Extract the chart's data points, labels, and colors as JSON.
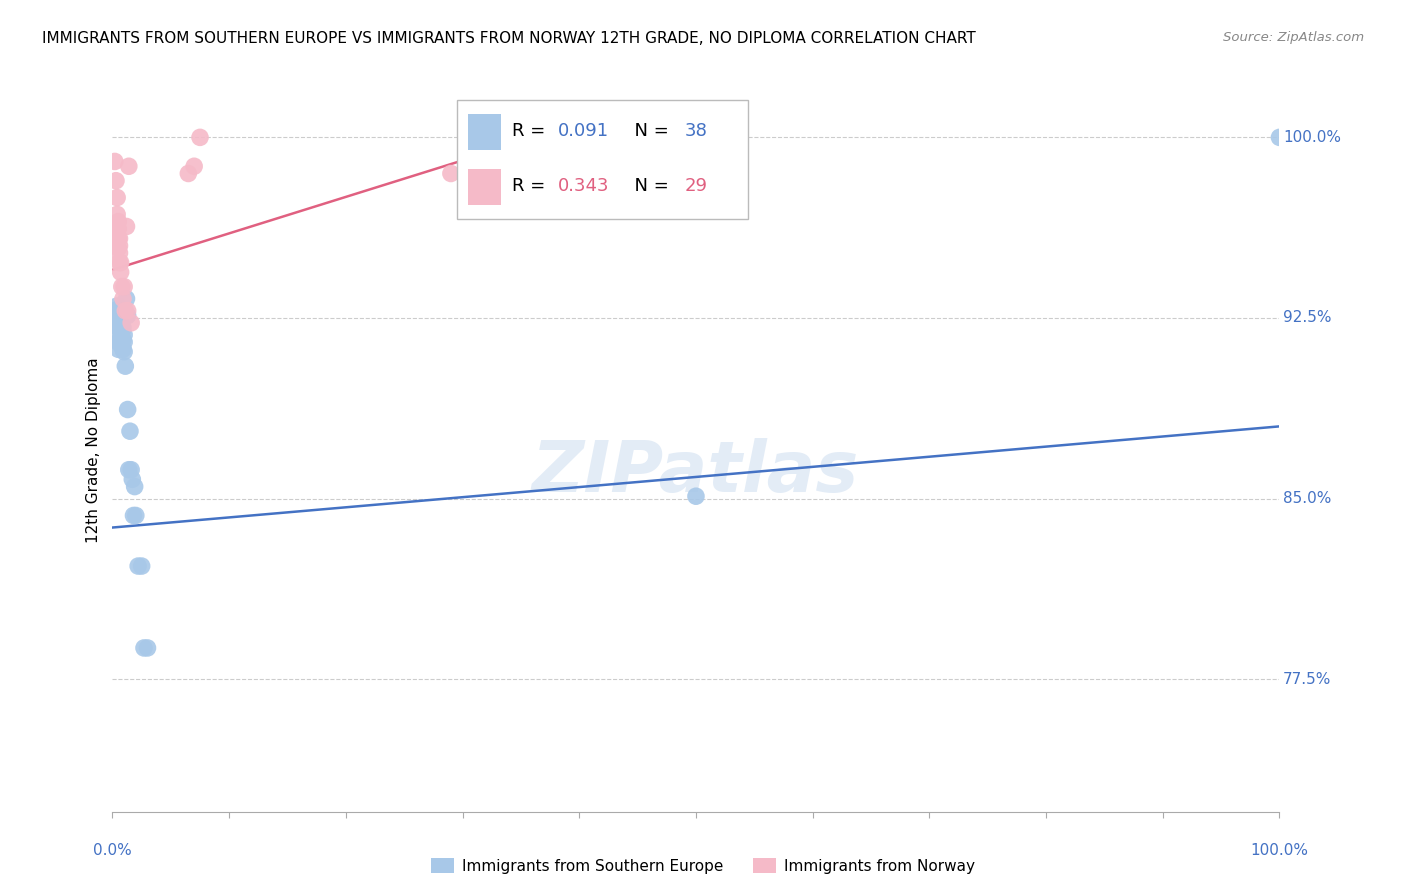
{
  "title": "IMMIGRANTS FROM SOUTHERN EUROPE VS IMMIGRANTS FROM NORWAY 12TH GRADE, NO DIPLOMA CORRELATION CHART",
  "source": "Source: ZipAtlas.com",
  "ylabel": "12th Grade, No Diploma",
  "xlim": [
    0.0,
    1.0
  ],
  "ylim": [
    0.72,
    1.02
  ],
  "ytick_vals": [
    0.775,
    0.85,
    0.925,
    1.0
  ],
  "ytick_labels": [
    "77.5%",
    "85.0%",
    "92.5%",
    "100.0%"
  ],
  "blue_fill": "#a8c8e8",
  "blue_line": "#4472c4",
  "pink_fill": "#f5bac8",
  "pink_line": "#e06080",
  "r_blue": 0.091,
  "n_blue": 38,
  "r_pink": 0.343,
  "n_pink": 29,
  "legend_label_blue": "Immigrants from Southern Europe",
  "legend_label_pink": "Immigrants from Norway",
  "watermark": "ZIPatlas",
  "blue_trend_x": [
    0.0,
    1.0
  ],
  "blue_trend_y": [
    0.838,
    0.88
  ],
  "pink_trend_x": [
    0.0,
    0.35
  ],
  "pink_trend_y": [
    0.945,
    0.998
  ],
  "blue_x": [
    0.002,
    0.003,
    0.004,
    0.004,
    0.005,
    0.005,
    0.005,
    0.005,
    0.006,
    0.006,
    0.007,
    0.007,
    0.007,
    0.008,
    0.008,
    0.009,
    0.009,
    0.009,
    0.01,
    0.01,
    0.01,
    0.011,
    0.012,
    0.013,
    0.013,
    0.014,
    0.015,
    0.016,
    0.017,
    0.018,
    0.019,
    0.02,
    0.022,
    0.025,
    0.027,
    0.03,
    0.5,
    1.0
  ],
  "blue_y": [
    0.928,
    0.924,
    0.93,
    0.925,
    0.921,
    0.918,
    0.915,
    0.912,
    0.929,
    0.924,
    0.921,
    0.916,
    0.914,
    0.919,
    0.916,
    0.921,
    0.916,
    0.912,
    0.918,
    0.915,
    0.911,
    0.905,
    0.933,
    0.926,
    0.887,
    0.862,
    0.878,
    0.862,
    0.858,
    0.843,
    0.855,
    0.843,
    0.822,
    0.822,
    0.788,
    0.788,
    0.851,
    1.0
  ],
  "pink_x": [
    0.002,
    0.003,
    0.004,
    0.004,
    0.004,
    0.004,
    0.005,
    0.005,
    0.005,
    0.005,
    0.006,
    0.006,
    0.006,
    0.006,
    0.007,
    0.007,
    0.008,
    0.009,
    0.01,
    0.011,
    0.012,
    0.013,
    0.014,
    0.016,
    0.065,
    0.07,
    0.075,
    0.29,
    0.35
  ],
  "pink_y": [
    0.99,
    0.982,
    0.975,
    0.968,
    0.962,
    0.958,
    0.965,
    0.962,
    0.958,
    0.954,
    0.958,
    0.955,
    0.952,
    0.948,
    0.948,
    0.944,
    0.938,
    0.933,
    0.938,
    0.928,
    0.963,
    0.928,
    0.988,
    0.923,
    0.985,
    0.988,
    1.0,
    0.985,
    0.99
  ]
}
